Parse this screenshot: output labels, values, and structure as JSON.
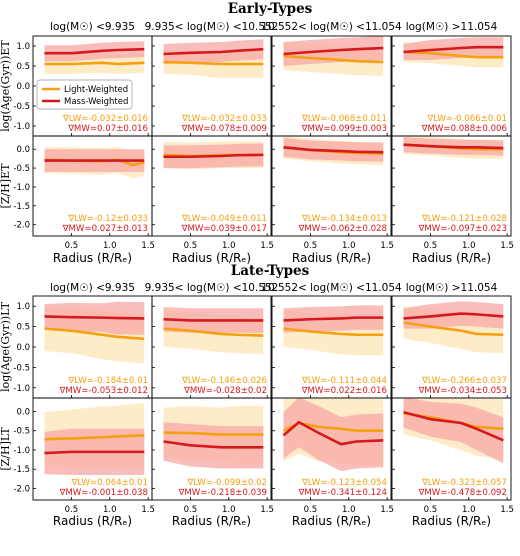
{
  "colors": {
    "light": "#f5a00f",
    "mass": "#d6191e",
    "light_band": "#fde6b6",
    "mass_band": "#f7a8a5"
  },
  "sections": [
    {
      "key": "et",
      "title": "Early-Types",
      "yticks_age": [
        "1.0",
        "0.5",
        "0.0",
        "-0.5",
        "-1.0"
      ],
      "yticks_z": [
        "0.0",
        "-0.5",
        "-1.0",
        "-1.5",
        "-2.0"
      ]
    },
    {
      "key": "lt",
      "title": "Late-Types",
      "yticks_age": [
        "1.0",
        "0.5",
        "0.0",
        "-0.5",
        "-1.0"
      ],
      "yticks_z": [
        "0.0",
        "-0.5",
        "-1.0",
        "-1.5",
        "-2.0"
      ]
    }
  ],
  "columns": [
    {
      "title": "log(M☉) <9.935"
    },
    {
      "title": "9.935< log(M☉) <10.552"
    },
    {
      "title": "10.552< log(M☉) <11.054"
    },
    {
      "title": "log(M☉) >11.054"
    }
  ],
  "xticks": [
    "0.5",
    "1.0",
    "1.5"
  ],
  "xlabel": "Radius (R/Rₑ)",
  "ylabels": {
    "et_age": "log(Age(Gyr))ET",
    "et_z": "[Z/H]ET",
    "lt_age": "log(Age(Gyr))LT",
    "lt_z": "[Z/H]LT"
  },
  "legend": {
    "light": "Light-Weighted",
    "mass": "Mass-Weighted"
  },
  "chart_data": {
    "type": "line",
    "x_range": [
      0,
      1.55
    ],
    "age_ylim": [
      -1.25,
      1.25
    ],
    "z_ylim": [
      -2.3,
      0.35
    ],
    "panels": [
      {
        "section": "et",
        "row": "age",
        "col": 0,
        "light": {
          "x": [
            0.15,
            0.5,
            0.9,
            1.1,
            1.45
          ],
          "y": [
            0.55,
            0.55,
            0.58,
            0.55,
            0.58
          ],
          "err": [
            0.25,
            0.25,
            0.25,
            0.25,
            0.25
          ]
        },
        "mass": {
          "x": [
            0.15,
            0.5,
            0.9,
            1.1,
            1.45
          ],
          "y": [
            0.82,
            0.82,
            0.88,
            0.9,
            0.92
          ],
          "err": [
            0.2,
            0.2,
            0.2,
            0.2,
            0.2
          ]
        },
        "grad_lw": "∇LW=-0.032±0.016",
        "grad_mw": "∇MW=0.07±0.016"
      },
      {
        "section": "et",
        "row": "age",
        "col": 1,
        "light": {
          "x": [
            0.15,
            0.5,
            0.9,
            1.1,
            1.45
          ],
          "y": [
            0.6,
            0.58,
            0.55,
            0.55,
            0.55
          ],
          "err": [
            0.3,
            0.3,
            0.35,
            0.35,
            0.35
          ]
        },
        "mass": {
          "x": [
            0.15,
            0.5,
            0.9,
            1.1,
            1.45
          ],
          "y": [
            0.8,
            0.83,
            0.85,
            0.88,
            0.92
          ],
          "err": [
            0.25,
            0.25,
            0.25,
            0.25,
            0.25
          ]
        },
        "grad_lw": "∇LW=-0.032±0.033",
        "grad_mw": "∇MW=0.078±0.009"
      },
      {
        "section": "et",
        "row": "age",
        "col": 2,
        "light": {
          "x": [
            0.15,
            0.5,
            0.9,
            1.1,
            1.45
          ],
          "y": [
            0.75,
            0.7,
            0.65,
            0.62,
            0.6
          ],
          "err": [
            0.35,
            0.35,
            0.35,
            0.35,
            0.35
          ]
        },
        "mass": {
          "x": [
            0.15,
            0.5,
            0.9,
            1.1,
            1.45
          ],
          "y": [
            0.8,
            0.85,
            0.9,
            0.92,
            0.95
          ],
          "err": [
            0.3,
            0.3,
            0.3,
            0.3,
            0.3
          ]
        },
        "grad_lw": "∇LW=-0.068±0.011",
        "grad_mw": "∇MW=0.099±0.003"
      },
      {
        "section": "et",
        "row": "age",
        "col": 3,
        "light": {
          "x": [
            0.15,
            0.5,
            0.9,
            1.1,
            1.45
          ],
          "y": [
            0.85,
            0.82,
            0.75,
            0.72,
            0.72
          ],
          "err": [
            0.25,
            0.25,
            0.25,
            0.25,
            0.25
          ]
        },
        "mass": {
          "x": [
            0.15,
            0.5,
            0.9,
            1.1,
            1.45
          ],
          "y": [
            0.85,
            0.9,
            0.95,
            0.97,
            0.97
          ],
          "err": [
            0.2,
            0.25,
            0.25,
            0.25,
            0.25
          ]
        },
        "grad_lw": "∇LW=-0.066±0.01",
        "grad_mw": "∇MW=0.088±0.006"
      },
      {
        "section": "et",
        "row": "z",
        "col": 0,
        "light": {
          "x": [
            0.15,
            0.5,
            0.9,
            1.1,
            1.3,
            1.45
          ],
          "y": [
            -0.28,
            -0.3,
            -0.32,
            -0.28,
            -0.42,
            -0.35
          ],
          "err": [
            0.35,
            0.35,
            0.35,
            0.35,
            0.35,
            0.35
          ]
        },
        "mass": {
          "x": [
            0.15,
            0.5,
            0.9,
            1.1,
            1.45
          ],
          "y": [
            -0.3,
            -0.3,
            -0.3,
            -0.3,
            -0.3
          ],
          "err": [
            0.3,
            0.3,
            0.3,
            0.3,
            0.3
          ]
        },
        "grad_lw": "∇LW=-0.12±0.033",
        "grad_mw": "∇MW=0.027±0.013"
      },
      {
        "section": "et",
        "row": "z",
        "col": 1,
        "light": {
          "x": [
            0.15,
            0.5,
            0.9,
            1.1,
            1.45
          ],
          "y": [
            -0.15,
            -0.18,
            -0.15,
            -0.15,
            -0.15
          ],
          "err": [
            0.35,
            0.35,
            0.35,
            0.35,
            0.35
          ]
        },
        "mass": {
          "x": [
            0.15,
            0.5,
            0.9,
            1.1,
            1.45
          ],
          "y": [
            -0.2,
            -0.2,
            -0.18,
            -0.16,
            -0.15
          ],
          "err": [
            0.3,
            0.3,
            0.3,
            0.3,
            0.3
          ]
        },
        "grad_lw": "∇LW=-0.049±0.011",
        "grad_mw": "∇MW=0.039±0.017"
      },
      {
        "section": "et",
        "row": "z",
        "col": 2,
        "light": {
          "x": [
            0.15,
            0.5,
            0.9,
            1.1,
            1.45
          ],
          "y": [
            0.05,
            -0.02,
            -0.08,
            -0.1,
            -0.12
          ],
          "err": [
            0.3,
            0.3,
            0.3,
            0.3,
            0.3
          ]
        },
        "mass": {
          "x": [
            0.15,
            0.5,
            0.9,
            1.1,
            1.45
          ],
          "y": [
            0.05,
            -0.02,
            -0.05,
            -0.07,
            -0.08
          ],
          "err": [
            0.25,
            0.25,
            0.25,
            0.25,
            0.25
          ]
        },
        "grad_lw": "∇LW=-0.134±0.013",
        "grad_mw": "∇MW=-0.062±0.028"
      },
      {
        "section": "et",
        "row": "z",
        "col": 3,
        "light": {
          "x": [
            0.15,
            0.5,
            0.9,
            1.1,
            1.45
          ],
          "y": [
            0.12,
            0.08,
            0.02,
            0.0,
            0.0
          ],
          "err": [
            0.25,
            0.25,
            0.25,
            0.25,
            0.25
          ]
        },
        "mass": {
          "x": [
            0.15,
            0.5,
            0.9,
            1.1,
            1.45
          ],
          "y": [
            0.12,
            0.08,
            0.05,
            0.05,
            0.03
          ],
          "err": [
            0.2,
            0.2,
            0.2,
            0.2,
            0.2
          ]
        },
        "grad_lw": "∇LW=-0.121±0.028",
        "grad_mw": "∇MW=-0.097±0.023"
      },
      {
        "section": "lt",
        "row": "age",
        "col": 0,
        "light": {
          "x": [
            0.15,
            0.5,
            0.9,
            1.1,
            1.45
          ],
          "y": [
            0.45,
            0.4,
            0.3,
            0.25,
            0.2
          ],
          "err": [
            0.55,
            0.55,
            0.6,
            0.6,
            0.6
          ]
        },
        "mass": {
          "x": [
            0.15,
            0.5,
            0.9,
            1.1,
            1.45
          ],
          "y": [
            0.75,
            0.73,
            0.72,
            0.71,
            0.7
          ],
          "err": [
            0.3,
            0.35,
            0.35,
            0.4,
            0.4
          ]
        },
        "grad_lw": "∇LW=-0.184±0.01",
        "grad_mw": "∇MW=-0.053±0.012"
      },
      {
        "section": "lt",
        "row": "age",
        "col": 1,
        "light": {
          "x": [
            0.15,
            0.5,
            0.9,
            1.1,
            1.45
          ],
          "y": [
            0.45,
            0.4,
            0.32,
            0.3,
            0.28
          ],
          "err": [
            0.45,
            0.45,
            0.45,
            0.45,
            0.45
          ]
        },
        "mass": {
          "x": [
            0.15,
            0.5,
            0.9,
            1.1,
            1.45
          ],
          "y": [
            0.68,
            0.65,
            0.65,
            0.65,
            0.65
          ],
          "err": [
            0.3,
            0.3,
            0.3,
            0.3,
            0.3
          ]
        },
        "grad_lw": "∇LW=-0.146±0.026",
        "grad_mw": "∇MW=-0.028±0.02"
      },
      {
        "section": "lt",
        "row": "age",
        "col": 2,
        "light": {
          "x": [
            0.15,
            0.5,
            0.9,
            1.1,
            1.45
          ],
          "y": [
            0.45,
            0.38,
            0.32,
            0.3,
            0.3
          ],
          "err": [
            0.45,
            0.45,
            0.5,
            0.5,
            0.5
          ]
        },
        "mass": {
          "x": [
            0.15,
            0.5,
            0.9,
            1.1,
            1.45
          ],
          "y": [
            0.65,
            0.68,
            0.7,
            0.72,
            0.72
          ],
          "err": [
            0.3,
            0.3,
            0.3,
            0.3,
            0.3
          ]
        },
        "grad_lw": "∇LW=-0.111±0.044",
        "grad_mw": "∇MW=0.022±0.016"
      },
      {
        "section": "lt",
        "row": "age",
        "col": 3,
        "light": {
          "x": [
            0.15,
            0.5,
            0.9,
            1.1,
            1.45
          ],
          "y": [
            0.6,
            0.5,
            0.4,
            0.32,
            0.3
          ],
          "err": [
            0.4,
            0.4,
            0.45,
            0.45,
            0.45
          ]
        },
        "mass": {
          "x": [
            0.15,
            0.5,
            0.9,
            1.1,
            1.45
          ],
          "y": [
            0.7,
            0.75,
            0.82,
            0.8,
            0.75
          ],
          "err": [
            0.25,
            0.3,
            0.3,
            0.3,
            0.3
          ]
        },
        "grad_lw": "∇LW=-0.266±0.037",
        "grad_mw": "∇MW=-0.034±0.053"
      },
      {
        "section": "lt",
        "row": "z",
        "col": 0,
        "light": {
          "x": [
            0.15,
            0.5,
            0.9,
            1.1,
            1.45
          ],
          "y": [
            -0.72,
            -0.7,
            -0.67,
            -0.65,
            -0.62
          ],
          "err": [
            0.7,
            0.75,
            0.8,
            0.8,
            0.85
          ]
        },
        "mass": {
          "x": [
            0.15,
            0.5,
            0.9,
            1.1,
            1.45
          ],
          "y": [
            -1.08,
            -1.05,
            -1.05,
            -1.05,
            -1.05
          ],
          "err": [
            0.55,
            0.6,
            0.6,
            0.6,
            0.6
          ]
        },
        "grad_lw": "∇LW=0.064±0.01",
        "grad_mw": "∇MW=-0.001±0.038"
      },
      {
        "section": "lt",
        "row": "z",
        "col": 1,
        "light": {
          "x": [
            0.15,
            0.5,
            0.9,
            1.1,
            1.45
          ],
          "y": [
            -0.55,
            -0.56,
            -0.6,
            -0.6,
            -0.6
          ],
          "err": [
            0.65,
            0.7,
            0.7,
            0.75,
            0.75
          ]
        },
        "mass": {
          "x": [
            0.15,
            0.5,
            0.9,
            1.1,
            1.45
          ],
          "y": [
            -0.78,
            -0.88,
            -0.93,
            -0.93,
            -0.93
          ],
          "err": [
            0.5,
            0.55,
            0.55,
            0.55,
            0.55
          ]
        },
        "grad_lw": "∇LW=-0.099±0.02",
        "grad_mw": "∇MW=-0.218±0.039"
      },
      {
        "section": "lt",
        "row": "z",
        "col": 2,
        "light": {
          "x": [
            0.15,
            0.35,
            0.6,
            0.9,
            1.1,
            1.45
          ],
          "y": [
            -0.5,
            -0.3,
            -0.4,
            -0.45,
            -0.5,
            -0.5
          ],
          "err": [
            0.8,
            0.8,
            0.9,
            0.9,
            0.9,
            0.9
          ]
        },
        "mass": {
          "x": [
            0.15,
            0.35,
            0.6,
            0.9,
            1.1,
            1.45
          ],
          "y": [
            -0.62,
            -0.28,
            -0.55,
            -0.85,
            -0.78,
            -0.75
          ],
          "err": [
            0.6,
            0.65,
            0.7,
            0.7,
            0.7,
            0.7
          ]
        },
        "grad_lw": "∇LW=-0.123±0.054",
        "grad_mw": "∇MW=-0.341±0.124"
      },
      {
        "section": "lt",
        "row": "z",
        "col": 3,
        "light": {
          "x": [
            0.15,
            0.5,
            0.9,
            1.1,
            1.45
          ],
          "y": [
            -0.05,
            -0.15,
            -0.3,
            -0.4,
            -0.45
          ],
          "err": [
            0.55,
            0.6,
            0.7,
            0.75,
            0.8
          ]
        },
        "mass": {
          "x": [
            0.15,
            0.5,
            0.9,
            1.1,
            1.45
          ],
          "y": [
            -0.02,
            -0.2,
            -0.3,
            -0.45,
            -0.75
          ],
          "err": [
            0.4,
            0.45,
            0.5,
            0.55,
            0.6
          ]
        },
        "grad_lw": "∇LW=-0.323±0.057",
        "grad_mw": "∇MW=-0.478±0.092"
      }
    ]
  }
}
